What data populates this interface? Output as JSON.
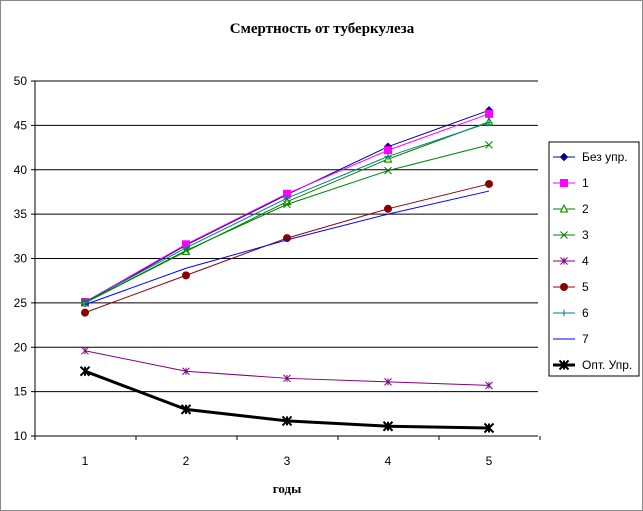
{
  "chart_data": {
    "type": "line",
    "title": "Смертность от туберкулеза",
    "xlabel": "годы",
    "ylabel": "",
    "x": [
      1,
      2,
      3,
      4,
      5
    ],
    "ylim": [
      10,
      50
    ],
    "yticks": [
      10,
      15,
      20,
      25,
      30,
      35,
      40,
      45,
      50
    ],
    "grid": "horizontal",
    "legend_position": "right",
    "series": [
      {
        "name": "Без упр.",
        "values": [
          25.0,
          31.5,
          37.2,
          42.6,
          46.7
        ],
        "color": "#00008b",
        "marker": "diamond",
        "width": 1
      },
      {
        "name": "1",
        "values": [
          25.1,
          31.6,
          37.3,
          42.2,
          46.3
        ],
        "color": "#ff00ff",
        "marker": "square",
        "width": 1
      },
      {
        "name": "2",
        "values": [
          25.0,
          30.8,
          36.4,
          41.2,
          45.4
        ],
        "color": "#008000",
        "marker": "triangle",
        "width": 1
      },
      {
        "name": "3",
        "values": [
          25.0,
          30.9,
          36.1,
          39.9,
          42.8
        ],
        "color": "#008000",
        "marker": "x",
        "width": 1
      },
      {
        "name": "4",
        "values": [
          19.6,
          17.3,
          16.5,
          16.1,
          15.7
        ],
        "color": "#800080",
        "marker": "star",
        "width": 1
      },
      {
        "name": "5",
        "values": [
          23.9,
          28.1,
          32.3,
          35.6,
          38.4
        ],
        "color": "#8b0000",
        "marker": "circle",
        "width": 1
      },
      {
        "name": "6",
        "values": [
          25.1,
          31.2,
          36.8,
          41.5,
          45.3
        ],
        "color": "#008080",
        "marker": "plus",
        "width": 1
      },
      {
        "name": "7",
        "values": [
          24.8,
          28.9,
          32.1,
          35.0,
          37.6
        ],
        "color": "#0000ff",
        "marker": "none",
        "width": 1
      },
      {
        "name": "Опт. Упр.",
        "values": [
          17.3,
          13.0,
          11.7,
          11.1,
          10.9
        ],
        "color": "#000000",
        "marker": "star",
        "width": 3
      }
    ]
  }
}
